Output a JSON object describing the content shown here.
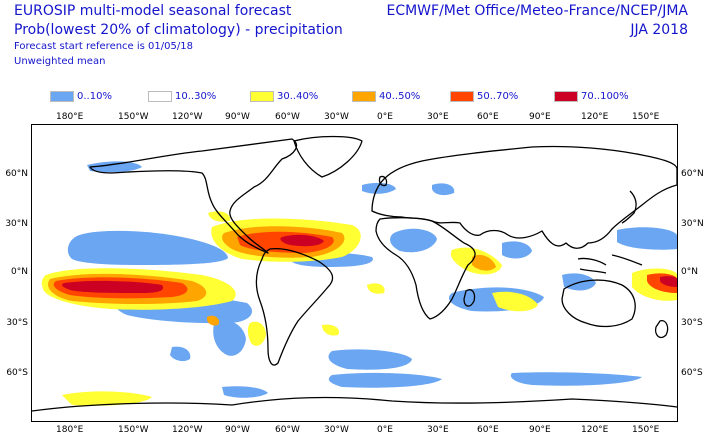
{
  "header": {
    "title_line1": "EUROSIP multi-model seasonal forecast",
    "title_line2": "Prob(lowest 20% of climatology) - precipitation",
    "start_reference": "Forecast start reference is 01/05/18",
    "mean_type": "Unweighted mean",
    "centres": "ECMWF/Met Office/Meteo-France/NCEP/JMA",
    "season": "JJA 2018"
  },
  "legend": [
    {
      "label": "0..10%",
      "color": "#6aa6f2"
    },
    {
      "label": "10..30%",
      "color": "#ffffff"
    },
    {
      "label": "30..40%",
      "color": "#ffff33"
    },
    {
      "label": "40..50%",
      "color": "#ffa500"
    },
    {
      "label": "50..70%",
      "color": "#ff4500"
    },
    {
      "label": "70..100%",
      "color": "#cc0022"
    }
  ],
  "axes": {
    "top_lon": [
      "180°E",
      "150°W",
      "120°W",
      "90°W",
      "60°W",
      "30°W",
      "0°E",
      "30°E",
      "60°E",
      "90°E",
      "120°E",
      "150°E"
    ],
    "bottom_lon": [
      "180°E",
      "150°W",
      "120°W",
      "90°W",
      "60°W",
      "30°W",
      "0°E",
      "30°E",
      "60°E",
      "90°E",
      "120°E",
      "150°E"
    ],
    "left_lat": [
      "60°N",
      "30°N",
      "0°N",
      "30°S",
      "60°S"
    ],
    "right_lat": [
      "60°N",
      "30°N",
      "0°N",
      "30°S",
      "60°S"
    ]
  }
}
